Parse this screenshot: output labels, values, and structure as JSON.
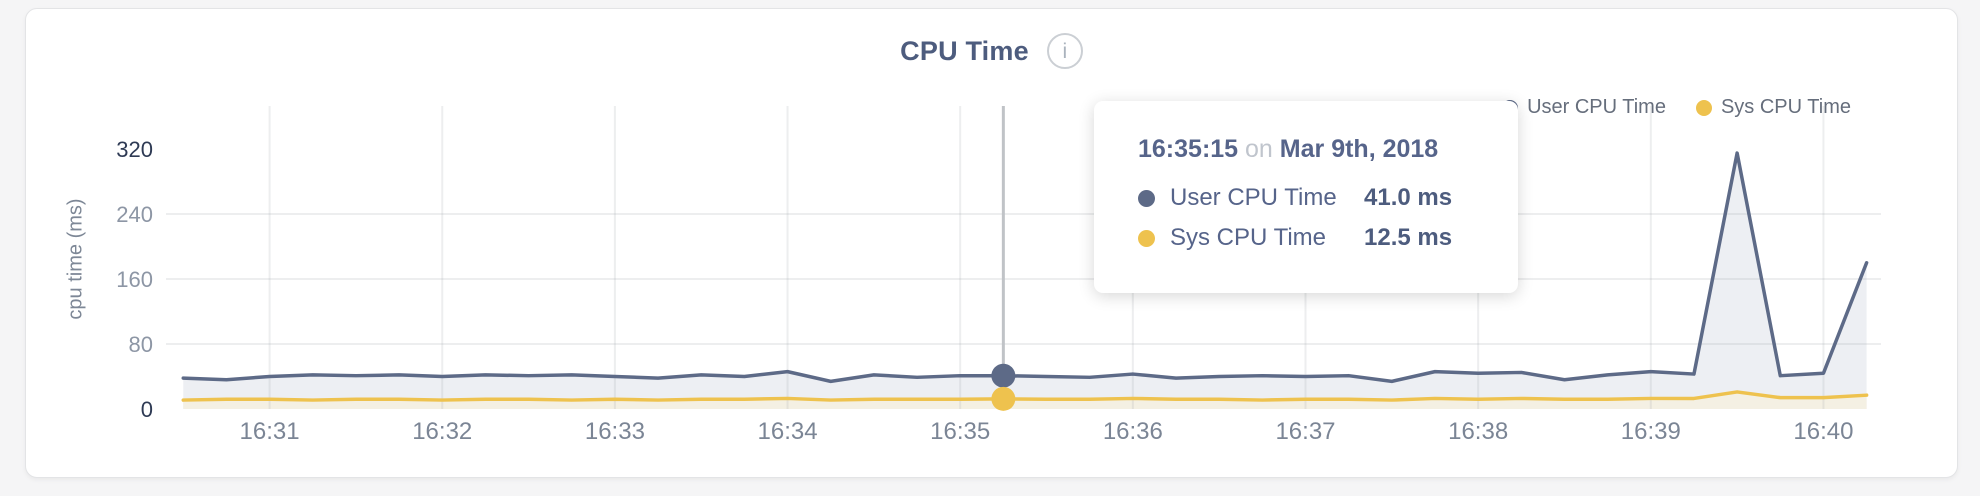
{
  "header": {
    "title": "CPU Time",
    "info_icon_glyph": "i"
  },
  "legend": {
    "items": [
      {
        "label": "User CPU Time",
        "color": "#5d6a87"
      },
      {
        "label": "Sys CPU Time",
        "color": "#eec24e"
      }
    ]
  },
  "tooltip": {
    "time": "16:35:15",
    "conjunction": "on",
    "date": "Mar 9th, 2018",
    "rows": [
      {
        "label": "User CPU Time",
        "value": "41.0 ms",
        "color": "#5d6a87"
      },
      {
        "label": "Sys CPU Time",
        "value": "12.5 ms",
        "color": "#eec24e"
      }
    ]
  },
  "chart_data": {
    "type": "area",
    "title": "CPU Time",
    "ylabel": "cpu time (ms)",
    "ylim": [
      0,
      373
    ],
    "grid_on": true,
    "legend_position": "top-right",
    "y_ticks": [
      {
        "value": 0,
        "emphasis": true,
        "gridline": false
      },
      {
        "value": 80,
        "emphasis": false,
        "gridline": true
      },
      {
        "value": 160,
        "emphasis": false,
        "gridline": true
      },
      {
        "value": 240,
        "emphasis": false,
        "gridline": true
      },
      {
        "value": 320,
        "emphasis": true,
        "gridline": false
      }
    ],
    "x_ticks": [
      "16:31",
      "16:32",
      "16:33",
      "16:34",
      "16:35",
      "16:36",
      "16:37",
      "16:38",
      "16:39",
      "16:40"
    ],
    "x_domain": [
      "16:30:24",
      "16:40:20"
    ],
    "x": [
      "16:30:30",
      "16:30:45",
      "16:31:00",
      "16:31:15",
      "16:31:30",
      "16:31:45",
      "16:32:00",
      "16:32:15",
      "16:32:30",
      "16:32:45",
      "16:33:00",
      "16:33:15",
      "16:33:30",
      "16:33:45",
      "16:34:00",
      "16:34:15",
      "16:34:30",
      "16:34:45",
      "16:35:00",
      "16:35:15",
      "16:35:30",
      "16:35:45",
      "16:36:00",
      "16:36:15",
      "16:36:30",
      "16:36:45",
      "16:37:00",
      "16:37:15",
      "16:37:30",
      "16:37:45",
      "16:38:00",
      "16:38:15",
      "16:38:30",
      "16:38:45",
      "16:39:00",
      "16:39:15",
      "16:39:30",
      "16:39:45",
      "16:40:00",
      "16:40:15"
    ],
    "series": [
      {
        "name": "User CPU Time",
        "color": "#5d6a87",
        "fill": "#edeff3",
        "values": [
          38,
          36,
          40,
          42,
          41,
          42,
          40,
          42,
          41,
          42,
          40,
          38,
          42,
          40,
          46,
          34,
          42,
          39,
          41,
          41,
          40,
          39,
          43,
          38,
          40,
          41,
          40,
          41,
          34,
          46,
          44,
          45,
          36,
          42,
          46,
          43,
          315,
          41,
          44,
          180
        ]
      },
      {
        "name": "Sys CPU Time",
        "color": "#eec24e",
        "fill": "#f4f0e3",
        "values": [
          11,
          12,
          12,
          11,
          12,
          12,
          11,
          12,
          12,
          11,
          12,
          11,
          12,
          12,
          13,
          11,
          12,
          12,
          12,
          12.5,
          12,
          12,
          13,
          12,
          12,
          11,
          12,
          12,
          11,
          13,
          12,
          13,
          12,
          12,
          13,
          13,
          21,
          14,
          14,
          17
        ]
      }
    ],
    "highlight_index": 19,
    "grid_color": "#9aa0a6",
    "crosshair_color": "#c0c3c7",
    "tick_dark": "#2e3a54",
    "tick_light": "#8d96a5",
    "x_label_color": "#7b8595"
  }
}
